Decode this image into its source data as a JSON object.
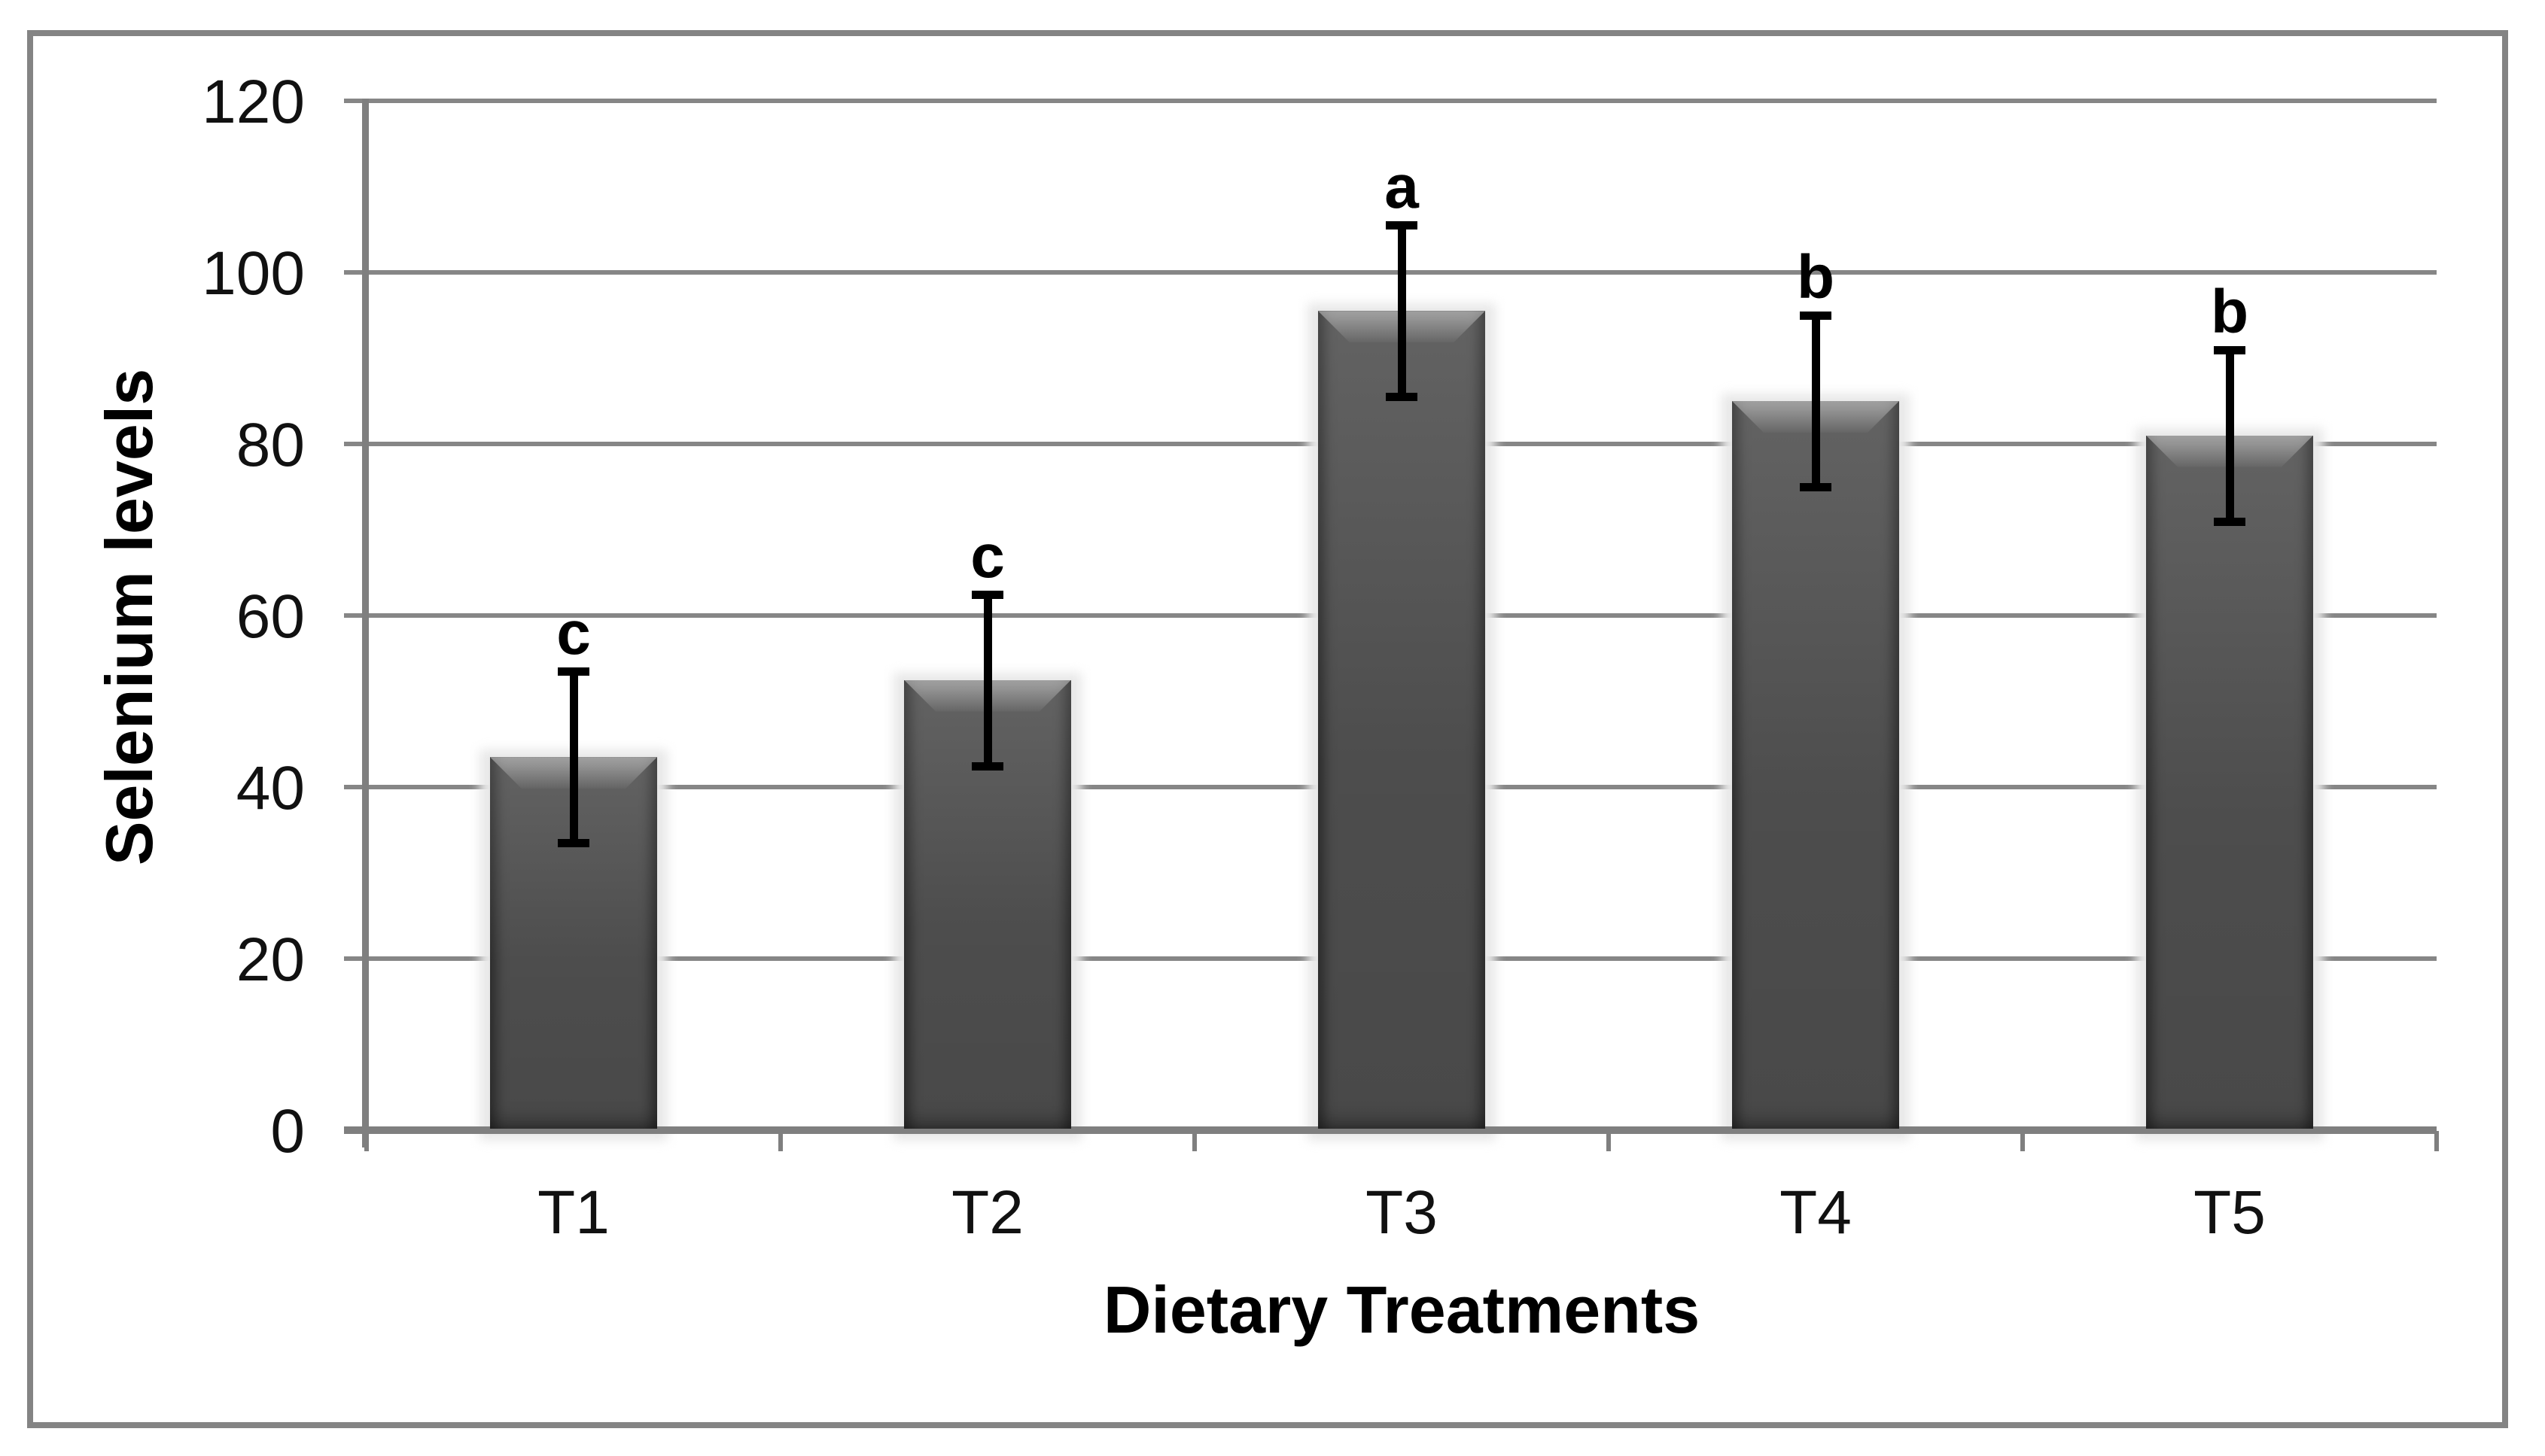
{
  "figure": {
    "background": "#ffffff",
    "border_color": "#848484"
  },
  "chart_data": {
    "type": "bar",
    "title": "",
    "xlabel": "Dietary Treatments",
    "ylabel": "Selenium levels",
    "categories": [
      "T1",
      "T2",
      "T3",
      "T4",
      "T5"
    ],
    "series": [
      {
        "name": "Selenium levels",
        "values": [
          43.5,
          52.5,
          95.5,
          85,
          81
        ]
      }
    ],
    "error_bars": {
      "plus": [
        10,
        10,
        10,
        10,
        10
      ],
      "minus": [
        10,
        10,
        10,
        10,
        10
      ]
    },
    "significance_letters": [
      "c",
      "c",
      "a",
      "b",
      "b"
    ],
    "ylim": [
      0,
      120
    ],
    "yticks": [
      0,
      20,
      40,
      60,
      80,
      100,
      120
    ],
    "grid": "horizontal",
    "legend": "none",
    "bar_color": "#515151",
    "gridline_color": "#868686",
    "axis_color": "#7f7f7f",
    "error_bar_color": "#000000",
    "text_color": "#111111"
  }
}
